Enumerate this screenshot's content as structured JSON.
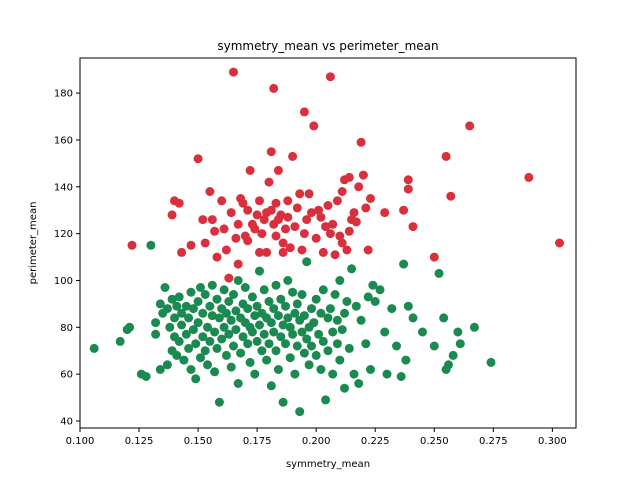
{
  "chart_data": {
    "type": "scatter",
    "title": "symmetry_mean vs perimeter_mean",
    "xlabel": "symmetry_mean",
    "ylabel": "perimeter_mean",
    "xlim": [
      0.1,
      0.31
    ],
    "ylim": [
      37,
      195
    ],
    "xticks": [
      0.1,
      0.125,
      0.15,
      0.175,
      0.2,
      0.225,
      0.25,
      0.275,
      0.3
    ],
    "xtick_labels": [
      "0.100",
      "0.125",
      "0.150",
      "0.175",
      "0.200",
      "0.225",
      "0.250",
      "0.275",
      "0.300"
    ],
    "yticks": [
      40,
      60,
      80,
      100,
      120,
      140,
      160,
      180
    ],
    "ytick_labels": [
      "40",
      "60",
      "80",
      "100",
      "120",
      "140",
      "160",
      "180"
    ],
    "grid": false,
    "series": [
      {
        "color": "#1a8a50",
        "points": [
          [
            0.106,
            71
          ],
          [
            0.117,
            74
          ],
          [
            0.12,
            79
          ],
          [
            0.121,
            80
          ],
          [
            0.126,
            60
          ],
          [
            0.128,
            59
          ],
          [
            0.13,
            115
          ],
          [
            0.132,
            82
          ],
          [
            0.132,
            77
          ],
          [
            0.134,
            90
          ],
          [
            0.134,
            62
          ],
          [
            0.135,
            86
          ],
          [
            0.136,
            97
          ],
          [
            0.137,
            64
          ],
          [
            0.137,
            88
          ],
          [
            0.138,
            80
          ],
          [
            0.139,
            92
          ],
          [
            0.139,
            70
          ],
          [
            0.14,
            84
          ],
          [
            0.14,
            76
          ],
          [
            0.141,
            89
          ],
          [
            0.141,
            68
          ],
          [
            0.142,
            93
          ],
          [
            0.142,
            74
          ],
          [
            0.143,
            86
          ],
          [
            0.143,
            81
          ],
          [
            0.144,
            66
          ],
          [
            0.145,
            89
          ],
          [
            0.145,
            77
          ],
          [
            0.146,
            84
          ],
          [
            0.146,
            71
          ],
          [
            0.147,
            95
          ],
          [
            0.147,
            62
          ],
          [
            0.148,
            79
          ],
          [
            0.148,
            88
          ],
          [
            0.149,
            73
          ],
          [
            0.149,
            58
          ],
          [
            0.15,
            82
          ],
          [
            0.15,
            91
          ],
          [
            0.151,
            67
          ],
          [
            0.151,
            97
          ],
          [
            0.152,
            76
          ],
          [
            0.152,
            86
          ],
          [
            0.153,
            70
          ],
          [
            0.153,
            94
          ],
          [
            0.154,
            80
          ],
          [
            0.154,
            64
          ],
          [
            0.155,
            89
          ],
          [
            0.155,
            74
          ],
          [
            0.156,
            85
          ],
          [
            0.156,
            98
          ],
          [
            0.157,
            78
          ],
          [
            0.157,
            61
          ],
          [
            0.158,
            92
          ],
          [
            0.158,
            71
          ],
          [
            0.159,
            84
          ],
          [
            0.159,
            48
          ],
          [
            0.16,
            88
          ],
          [
            0.16,
            75
          ],
          [
            0.161,
            80
          ],
          [
            0.161,
            96
          ],
          [
            0.162,
            68
          ],
          [
            0.162,
            86
          ],
          [
            0.163,
            91
          ],
          [
            0.163,
            77
          ],
          [
            0.164,
            83
          ],
          [
            0.164,
            63
          ],
          [
            0.165,
            94
          ],
          [
            0.165,
            72
          ],
          [
            0.166,
            87
          ],
          [
            0.166,
            79
          ],
          [
            0.167,
            100
          ],
          [
            0.167,
            56
          ],
          [
            0.168,
            84
          ],
          [
            0.168,
            69
          ],
          [
            0.169,
            90
          ],
          [
            0.169,
            76
          ],
          [
            0.17,
            82
          ],
          [
            0.17,
            97
          ],
          [
            0.171,
            73
          ],
          [
            0.171,
            88
          ],
          [
            0.172,
            65
          ],
          [
            0.172,
            80
          ],
          [
            0.173,
            93
          ],
          [
            0.173,
            78
          ],
          [
            0.174,
            85
          ],
          [
            0.174,
            60
          ],
          [
            0.175,
            89
          ],
          [
            0.175,
            74
          ],
          [
            0.176,
            81
          ],
          [
            0.176,
            104
          ],
          [
            0.177,
            70
          ],
          [
            0.177,
            86
          ],
          [
            0.178,
            96
          ],
          [
            0.178,
            77
          ],
          [
            0.179,
            84
          ],
          [
            0.179,
            66
          ],
          [
            0.18,
            91
          ],
          [
            0.18,
            73
          ],
          [
            0.181,
            82
          ],
          [
            0.181,
            55
          ],
          [
            0.182,
            88
          ],
          [
            0.182,
            78
          ],
          [
            0.183,
            98
          ],
          [
            0.183,
            70
          ],
          [
            0.184,
            85
          ],
          [
            0.184,
            62
          ],
          [
            0.185,
            92
          ],
          [
            0.185,
            76
          ],
          [
            0.186,
            81
          ],
          [
            0.186,
            48
          ],
          [
            0.187,
            89
          ],
          [
            0.187,
            73
          ],
          [
            0.188,
            84
          ],
          [
            0.188,
            100
          ],
          [
            0.189,
            67
          ],
          [
            0.189,
            80
          ],
          [
            0.19,
            95
          ],
          [
            0.19,
            77
          ],
          [
            0.191,
            86
          ],
          [
            0.191,
            60
          ],
          [
            0.192,
            90
          ],
          [
            0.192,
            72
          ],
          [
            0.193,
            83
          ],
          [
            0.193,
            44
          ],
          [
            0.194,
            78
          ],
          [
            0.194,
            94
          ],
          [
            0.195,
            69
          ],
          [
            0.195,
            85
          ],
          [
            0.196,
            75
          ],
          [
            0.196,
            108
          ],
          [
            0.197,
            80
          ],
          [
            0.197,
            64
          ],
          [
            0.198,
            88
          ],
          [
            0.198,
            72
          ],
          [
            0.199,
            82
          ],
          [
            0.2,
            92
          ],
          [
            0.2,
            68
          ],
          [
            0.201,
            77
          ],
          [
            0.202,
            86
          ],
          [
            0.202,
            62
          ],
          [
            0.203,
            96
          ],
          [
            0.203,
            74
          ],
          [
            0.204,
            49
          ],
          [
            0.205,
            84
          ],
          [
            0.205,
            70
          ],
          [
            0.206,
            88
          ],
          [
            0.207,
            78
          ],
          [
            0.207,
            60
          ],
          [
            0.208,
            94
          ],
          [
            0.209,
            73
          ],
          [
            0.209,
            83
          ],
          [
            0.21,
            66
          ],
          [
            0.21,
            100
          ],
          [
            0.211,
            79
          ],
          [
            0.212,
            86
          ],
          [
            0.212,
            54
          ],
          [
            0.213,
            91
          ],
          [
            0.214,
            71
          ],
          [
            0.215,
            105
          ],
          [
            0.216,
            60
          ],
          [
            0.217,
            89
          ],
          [
            0.218,
            56
          ],
          [
            0.219,
            83
          ],
          [
            0.221,
            73
          ],
          [
            0.222,
            93
          ],
          [
            0.223,
            62
          ],
          [
            0.224,
            98
          ],
          [
            0.225,
            91
          ],
          [
            0.227,
            96
          ],
          [
            0.229,
            78
          ],
          [
            0.23,
            60
          ],
          [
            0.232,
            88
          ],
          [
            0.234,
            72
          ],
          [
            0.236,
            59
          ],
          [
            0.237,
            107
          ],
          [
            0.238,
            66
          ],
          [
            0.239,
            89
          ],
          [
            0.241,
            84
          ],
          [
            0.245,
            78
          ],
          [
            0.25,
            72
          ],
          [
            0.252,
            103
          ],
          [
            0.254,
            84
          ],
          [
            0.255,
            62
          ],
          [
            0.256,
            64
          ],
          [
            0.258,
            68
          ],
          [
            0.26,
            78
          ],
          [
            0.261,
            73
          ],
          [
            0.267,
            80
          ],
          [
            0.274,
            65
          ]
        ]
      },
      {
        "color": "#d9303e",
        "points": [
          [
            0.122,
            115
          ],
          [
            0.139,
            128
          ],
          [
            0.14,
            134
          ],
          [
            0.142,
            133
          ],
          [
            0.143,
            112
          ],
          [
            0.147,
            115
          ],
          [
            0.15,
            152
          ],
          [
            0.152,
            126
          ],
          [
            0.153,
            116
          ],
          [
            0.155,
            138
          ],
          [
            0.156,
            126
          ],
          [
            0.157,
            121
          ],
          [
            0.158,
            110
          ],
          [
            0.16,
            134
          ],
          [
            0.161,
            122
          ],
          [
            0.162,
            113
          ],
          [
            0.163,
            101
          ],
          [
            0.164,
            129
          ],
          [
            0.165,
            189
          ],
          [
            0.166,
            118
          ],
          [
            0.167,
            124
          ],
          [
            0.167,
            107
          ],
          [
            0.168,
            135
          ],
          [
            0.169,
            133
          ],
          [
            0.17,
            119
          ],
          [
            0.171,
            117
          ],
          [
            0.171,
            130
          ],
          [
            0.172,
            147
          ],
          [
            0.173,
            124
          ],
          [
            0.174,
            122
          ],
          [
            0.175,
            128
          ],
          [
            0.176,
            134
          ],
          [
            0.176,
            112
          ],
          [
            0.177,
            120
          ],
          [
            0.178,
            126
          ],
          [
            0.179,
            129
          ],
          [
            0.179,
            112
          ],
          [
            0.18,
            142
          ],
          [
            0.181,
            130
          ],
          [
            0.181,
            155
          ],
          [
            0.182,
            124
          ],
          [
            0.182,
            182
          ],
          [
            0.183,
            133
          ],
          [
            0.183,
            119
          ],
          [
            0.184,
            147
          ],
          [
            0.184,
            126
          ],
          [
            0.185,
            128
          ],
          [
            0.186,
            116
          ],
          [
            0.186,
            112
          ],
          [
            0.187,
            122
          ],
          [
            0.188,
            134
          ],
          [
            0.188,
            127
          ],
          [
            0.189,
            114
          ],
          [
            0.19,
            153
          ],
          [
            0.191,
            123
          ],
          [
            0.192,
            131
          ],
          [
            0.193,
            137
          ],
          [
            0.194,
            113
          ],
          [
            0.195,
            120
          ],
          [
            0.195,
            172
          ],
          [
            0.196,
            126
          ],
          [
            0.197,
            137
          ],
          [
            0.198,
            129
          ],
          [
            0.199,
            166
          ],
          [
            0.2,
            118
          ],
          [
            0.201,
            130
          ],
          [
            0.202,
            127
          ],
          [
            0.203,
            112
          ],
          [
            0.204,
            123
          ],
          [
            0.205,
            132
          ],
          [
            0.206,
            187
          ],
          [
            0.206,
            120
          ],
          [
            0.207,
            124
          ],
          [
            0.208,
            111
          ],
          [
            0.209,
            134
          ],
          [
            0.21,
            119
          ],
          [
            0.211,
            116
          ],
          [
            0.211,
            138
          ],
          [
            0.212,
            143
          ],
          [
            0.213,
            113
          ],
          [
            0.214,
            144
          ],
          [
            0.214,
            121
          ],
          [
            0.215,
            126
          ],
          [
            0.216,
            129
          ],
          [
            0.217,
            125
          ],
          [
            0.218,
            140
          ],
          [
            0.219,
            159
          ],
          [
            0.22,
            145
          ],
          [
            0.221,
            131
          ],
          [
            0.222,
            113
          ],
          [
            0.223,
            135
          ],
          [
            0.229,
            129
          ],
          [
            0.237,
            130
          ],
          [
            0.239,
            143
          ],
          [
            0.239,
            139
          ],
          [
            0.241,
            123
          ],
          [
            0.25,
            110
          ],
          [
            0.255,
            153
          ],
          [
            0.257,
            136
          ],
          [
            0.265,
            166
          ],
          [
            0.29,
            144
          ],
          [
            0.303,
            116
          ]
        ]
      }
    ]
  }
}
